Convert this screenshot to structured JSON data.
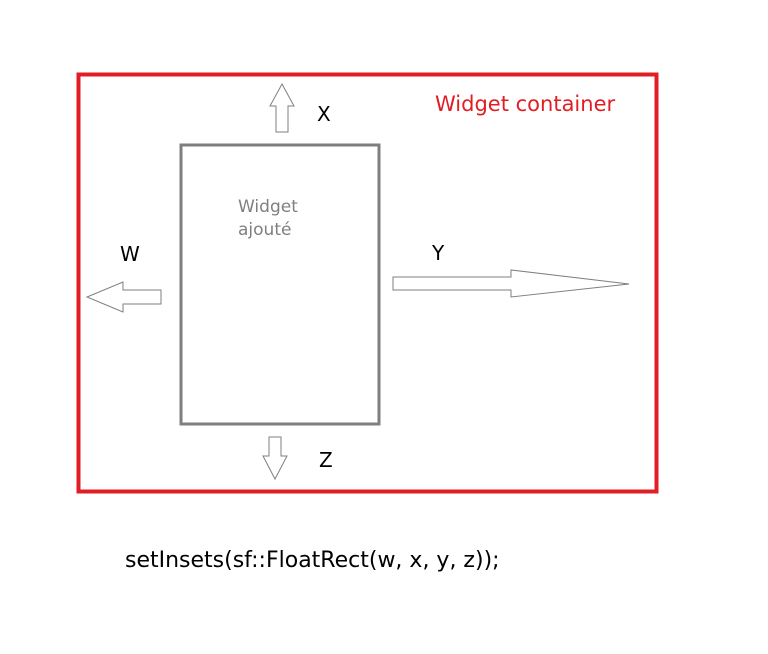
{
  "container": {
    "label": "Widget container",
    "color": "#e01e24"
  },
  "widget": {
    "label_line1": "Widget",
    "label_line2": "ajouté",
    "color": "#7f7f7f"
  },
  "insets": {
    "x_label": "X",
    "y_label": "Y",
    "z_label": "Z",
    "w_label": "W"
  },
  "code": "setInsets(sf::FloatRect(w, x, y, z));",
  "arrow_color": "#7f7f7f"
}
